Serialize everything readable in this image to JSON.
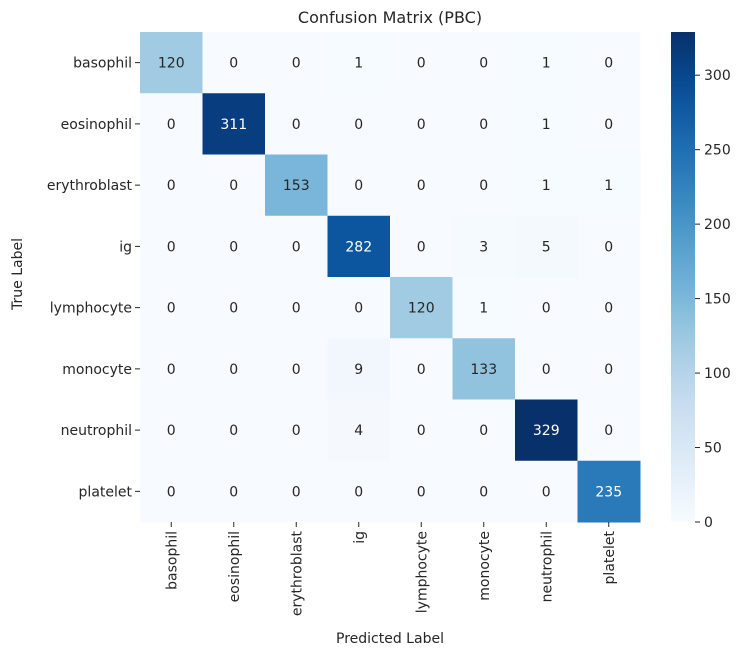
{
  "chart_data": {
    "type": "heatmap",
    "title": "Confusion Matrix (PBC)",
    "xlabel": "Predicted Label",
    "ylabel": "True Label",
    "x_categories": [
      "basophil",
      "eosinophil",
      "erythroblast",
      "ig",
      "lymphocyte",
      "monocyte",
      "neutrophil",
      "platelet"
    ],
    "y_categories": [
      "basophil",
      "eosinophil",
      "erythroblast",
      "ig",
      "lymphocyte",
      "monocyte",
      "neutrophil",
      "platelet"
    ],
    "values": [
      [
        120,
        0,
        0,
        1,
        0,
        0,
        1,
        0
      ],
      [
        0,
        311,
        0,
        0,
        0,
        0,
        1,
        0
      ],
      [
        0,
        0,
        153,
        0,
        0,
        0,
        1,
        1
      ],
      [
        0,
        0,
        0,
        282,
        0,
        3,
        5,
        0
      ],
      [
        0,
        0,
        0,
        0,
        120,
        1,
        0,
        0
      ],
      [
        0,
        0,
        0,
        9,
        0,
        133,
        0,
        0
      ],
      [
        0,
        0,
        0,
        4,
        0,
        0,
        329,
        0
      ],
      [
        0,
        0,
        0,
        0,
        0,
        0,
        0,
        235
      ]
    ],
    "colorbar": {
      "min": 0,
      "max": 329,
      "ticks": [
        0,
        50,
        100,
        150,
        200,
        250,
        300
      ],
      "colormap": "Blues"
    }
  }
}
